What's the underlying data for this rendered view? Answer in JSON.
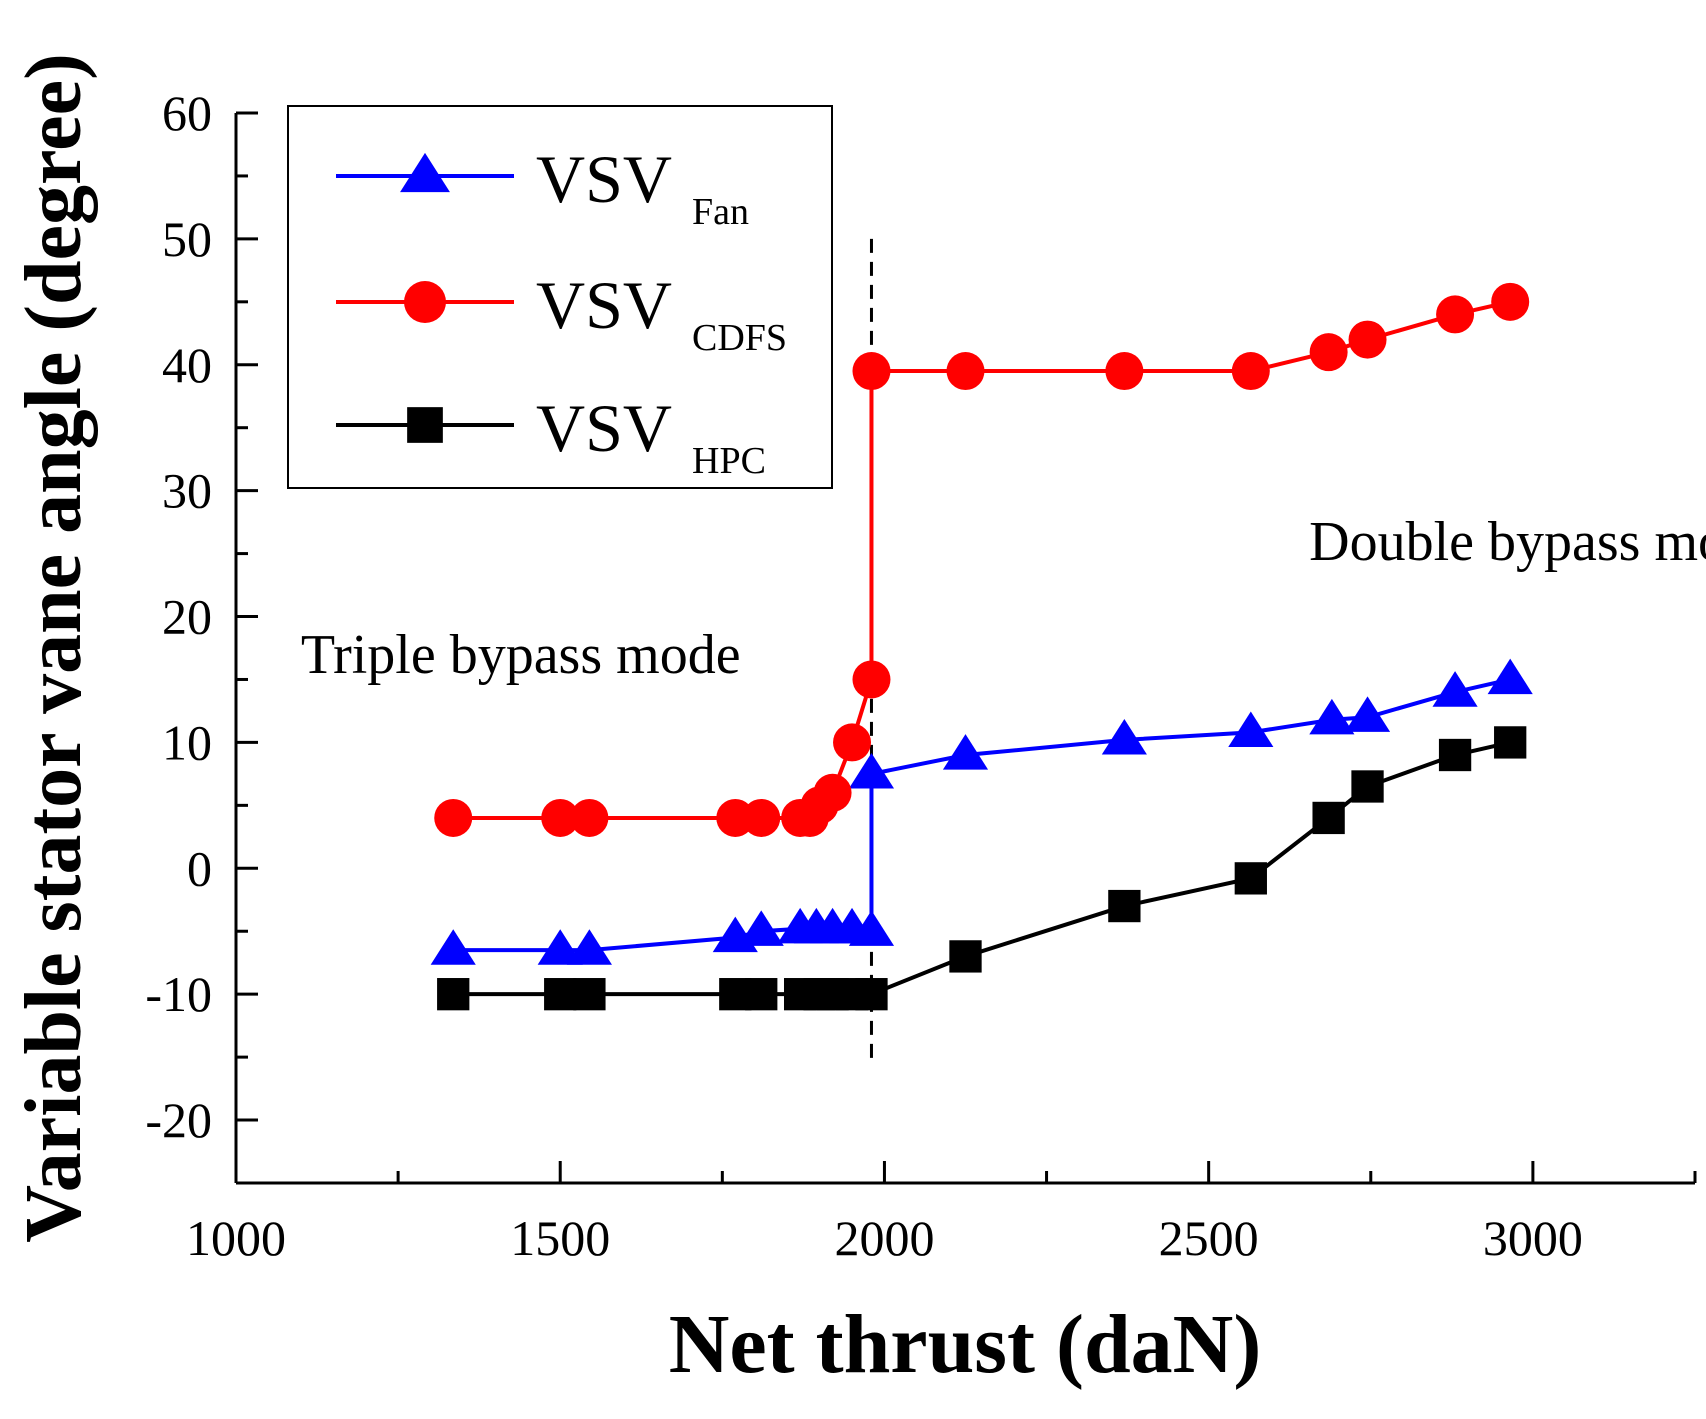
{
  "chart_data": {
    "type": "line",
    "title": "",
    "xlabel": "Net thrust (daN)",
    "ylabel": "Variable stator vane angle (degree)",
    "xlim": [
      1000,
      3250
    ],
    "ylim": [
      -25,
      60
    ],
    "x_ticks": [
      "1000",
      "1500",
      "2000",
      "2500",
      "3000"
    ],
    "y_ticks": [
      "60",
      "50",
      "40",
      "30",
      "20",
      "10",
      "0",
      "-10",
      "-20"
    ],
    "transition_x": 1980,
    "series": [
      {
        "name": "VSV",
        "subscript": "Fan",
        "color": "#0000ff",
        "marker": "triangle",
        "x": [
          1335,
          1500,
          1545,
          1770,
          1810,
          1870,
          1895,
          1920,
          1950,
          1980,
          1980,
          2125,
          2370,
          2565,
          2690,
          2745,
          2880,
          2965
        ],
        "y": [
          -6.5,
          -6.5,
          -6.5,
          -5.5,
          -5,
          -4.8,
          -4.8,
          -4.8,
          -4.8,
          -5,
          7.5,
          9,
          10.2,
          10.8,
          11.8,
          12,
          14,
          15
        ]
      },
      {
        "name": "VSV",
        "subscript": "CDFS",
        "color": "#ff0000",
        "marker": "circle",
        "x": [
          1335,
          1500,
          1545,
          1770,
          1810,
          1870,
          1885,
          1900,
          1920,
          1950,
          1980,
          1980,
          2125,
          2370,
          2565,
          2685,
          2745,
          2880,
          2965
        ],
        "y": [
          4,
          4,
          4,
          4,
          4,
          4,
          4,
          5,
          6,
          10,
          15,
          39.5,
          39.5,
          39.5,
          39.5,
          41,
          42,
          44,
          45
        ]
      },
      {
        "name": "VSV",
        "subscript": "HPC",
        "color": "#000000",
        "marker": "square",
        "x": [
          1335,
          1500,
          1545,
          1770,
          1810,
          1870,
          1900,
          1920,
          1950,
          1980,
          2125,
          2370,
          2565,
          2685,
          2745,
          2880,
          2965
        ],
        "y": [
          -10,
          -10,
          -10,
          -10,
          -10,
          -10,
          -10,
          -10,
          -10,
          -10,
          -7,
          -3,
          -0.8,
          4,
          6.5,
          9,
          10
        ]
      }
    ],
    "annotations": [
      {
        "text": "Triple bypass mode",
        "x": 1100,
        "y": 15.5
      },
      {
        "text": "Double bypass mode",
        "x": 2655,
        "y": 24.5
      }
    ],
    "legend": {
      "position": "top-left"
    }
  }
}
